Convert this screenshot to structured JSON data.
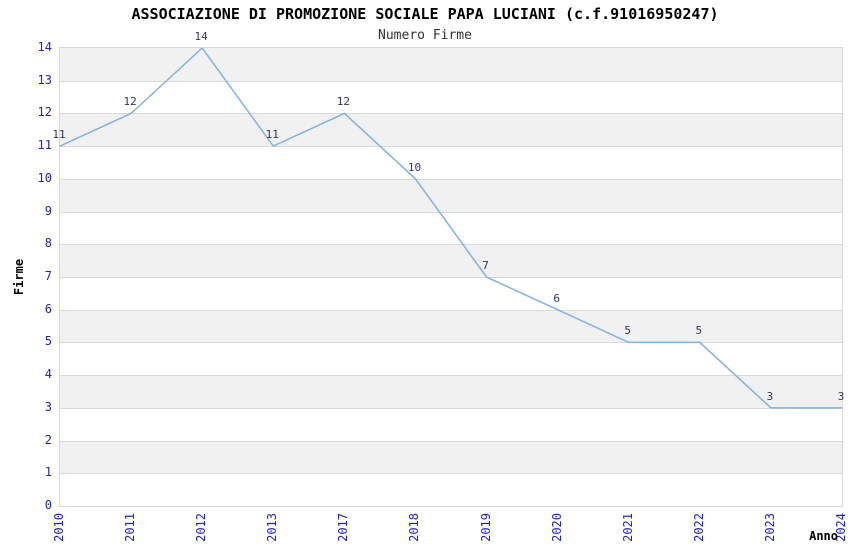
{
  "header": {
    "title": "ASSOCIAZIONE DI PROMOZIONE SOCIALE PAPA LUCIANI (c.f.91016950247)",
    "subtitle": "Numero Firme"
  },
  "chart_data": {
    "type": "line",
    "title": "ASSOCIAZIONE DI PROMOZIONE SOCIALE PAPA LUCIANI (c.f.91016950247)",
    "subtitle": "Numero Firme",
    "xlabel": "Anno",
    "ylabel": "Firme",
    "categories": [
      "2010",
      "2011",
      "2012",
      "2013",
      "2017",
      "2018",
      "2019",
      "2020",
      "2021",
      "2022",
      "2023",
      "2024"
    ],
    "values": [
      11,
      12,
      14,
      11,
      12,
      10,
      7,
      6,
      5,
      5,
      3,
      3
    ],
    "ylim": [
      0,
      14
    ],
    "ytick_step": 1,
    "grid": "horizontal-only",
    "bands": "alternating gray stripes between odd and even y gridlines",
    "legend": "none",
    "colors": {
      "line": "#7fb2e8",
      "tick_label": "#2222cc",
      "data_label": "#333366",
      "band": "#f1f1f1",
      "grid": "#d9d9d9",
      "title": "#000000",
      "subtitle": "#333333"
    }
  }
}
